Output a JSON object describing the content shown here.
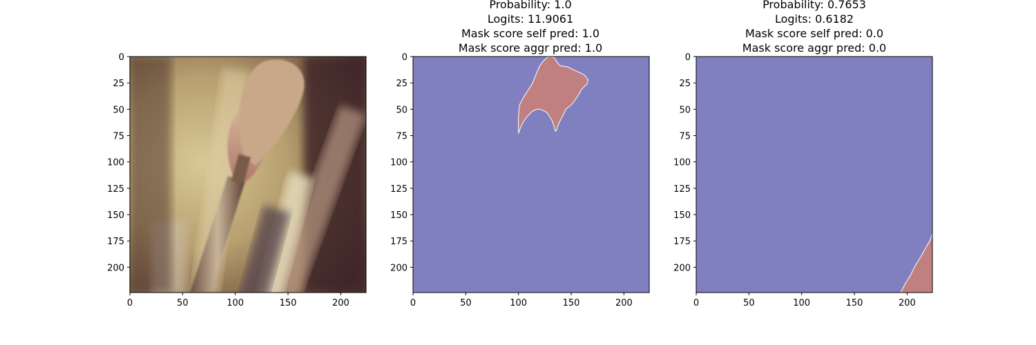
{
  "chart_data": [
    {
      "type": "image",
      "panel": "original-image",
      "title_lines": [],
      "image_description": "blurred close-up photo of paintbrushes",
      "xlim": [
        0,
        224
      ],
      "ylim": [
        224,
        0
      ],
      "xticks": [
        0,
        50,
        100,
        150,
        200
      ],
      "yticks": [
        0,
        25,
        50,
        75,
        100,
        125,
        150,
        175,
        200
      ],
      "xtick_labels": [
        "0",
        "50",
        "100",
        "150",
        "200"
      ],
      "ytick_labels": [
        "0",
        "25",
        "50",
        "75",
        "100",
        "125",
        "150",
        "175",
        "200"
      ]
    },
    {
      "type": "heatmap",
      "panel": "mask-1",
      "title_lines": [
        "Probability: 1.0",
        "Logits: 11.9061",
        "Mask score self pred: 1.0",
        "Mask score aggr pred: 1.0"
      ],
      "background_color": "#8080c0",
      "mask_color": "#c08080",
      "mask_polygon": [
        [
          100,
          73
        ],
        [
          100,
          56
        ],
        [
          101,
          46
        ],
        [
          104,
          40
        ],
        [
          109,
          32
        ],
        [
          113,
          26
        ],
        [
          117,
          16
        ],
        [
          120,
          9
        ],
        [
          123,
          5
        ],
        [
          127,
          1
        ],
        [
          130,
          0
        ],
        [
          134,
          1
        ],
        [
          137,
          6
        ],
        [
          140,
          9
        ],
        [
          143,
          9
        ],
        [
          147,
          10
        ],
        [
          153,
          13
        ],
        [
          160,
          16
        ],
        [
          163,
          18
        ],
        [
          166,
          22
        ],
        [
          165,
          26
        ],
        [
          160,
          31
        ],
        [
          156,
          38
        ],
        [
          151,
          45
        ],
        [
          145,
          50
        ],
        [
          141,
          58
        ],
        [
          138,
          64
        ],
        [
          136,
          70
        ],
        [
          135,
          71
        ],
        [
          134,
          67
        ],
        [
          132,
          61
        ],
        [
          127,
          53
        ],
        [
          121,
          50
        ],
        [
          117,
          50
        ],
        [
          113,
          52
        ],
        [
          108,
          57
        ],
        [
          104,
          63
        ],
        [
          101,
          70
        ]
      ],
      "xlim": [
        0,
        224
      ],
      "ylim": [
        224,
        0
      ],
      "xticks": [
        0,
        50,
        100,
        150,
        200
      ],
      "yticks": [
        0,
        25,
        50,
        75,
        100,
        125,
        150,
        175,
        200
      ],
      "xtick_labels": [
        "0",
        "50",
        "100",
        "150",
        "200"
      ],
      "ytick_labels": [
        "0",
        "25",
        "50",
        "75",
        "100",
        "125",
        "150",
        "175",
        "200"
      ]
    },
    {
      "type": "heatmap",
      "panel": "mask-2",
      "title_lines": [
        "Probability: 0.7653",
        "Logits: 0.6182",
        "Mask score self pred: 0.0",
        "Mask score aggr pred: 0.0"
      ],
      "background_color": "#8080c0",
      "mask_color": "#c08080",
      "mask_polygon": [
        [
          194,
          224
        ],
        [
          198,
          216
        ],
        [
          203,
          208
        ],
        [
          208,
          198
        ],
        [
          213,
          190
        ],
        [
          218,
          181
        ],
        [
          222,
          174
        ],
        [
          224,
          168
        ],
        [
          224,
          224
        ]
      ],
      "xlim": [
        0,
        224
      ],
      "ylim": [
        224,
        0
      ],
      "xticks": [
        0,
        50,
        100,
        150,
        200
      ],
      "yticks": [
        0,
        25,
        50,
        75,
        100,
        125,
        150,
        175,
        200
      ],
      "xtick_labels": [
        "0",
        "50",
        "100",
        "150",
        "200"
      ],
      "ytick_labels": [
        "0",
        "25",
        "50",
        "75",
        "100",
        "125",
        "150",
        "175",
        "200"
      ]
    }
  ]
}
